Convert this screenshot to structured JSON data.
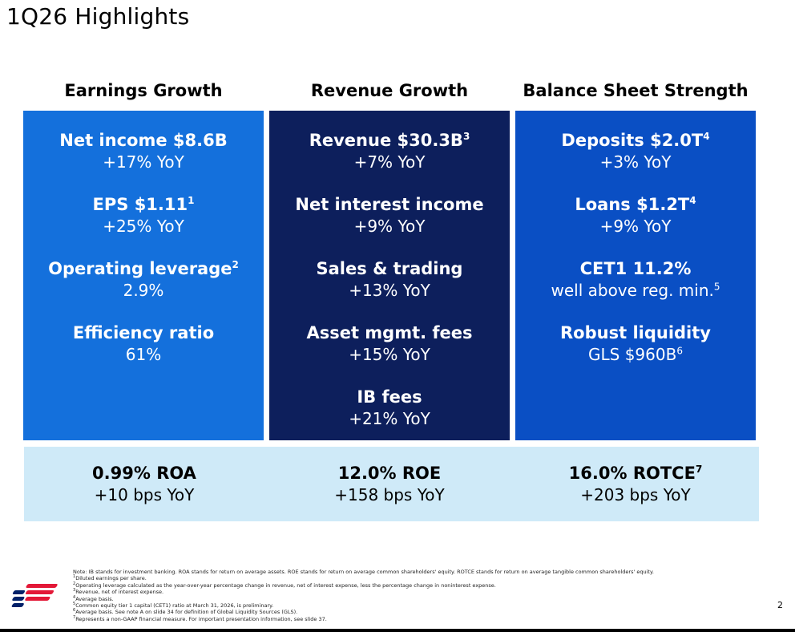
{
  "slide": {
    "title": "1Q26 Highlights",
    "page_number": "2"
  },
  "columns": [
    {
      "heading": "Earnings Growth",
      "color": "#1470dc",
      "metrics": [
        {
          "title": "Net income $8.6B",
          "sup": "",
          "sub": "+17% YoY",
          "sub_sup": ""
        },
        {
          "title": "EPS $1.11",
          "sup": "1",
          "sub": "+25% YoY",
          "sub_sup": ""
        },
        {
          "title": "Operating leverage",
          "sup": "2",
          "sub": "2.9%",
          "sub_sup": ""
        },
        {
          "title": "Efficiency ratio",
          "sup": "",
          "sub": "61%",
          "sub_sup": ""
        }
      ]
    },
    {
      "heading": "Revenue Growth",
      "color": "#0d1f5c",
      "metrics": [
        {
          "title": "Revenue $30.3B",
          "sup": "3",
          "sub": "+7% YoY",
          "sub_sup": ""
        },
        {
          "title": "Net interest income",
          "sup": "",
          "sub": "+9% YoY",
          "sub_sup": ""
        },
        {
          "title": "Sales & trading",
          "sup": "",
          "sub": "+13% YoY",
          "sub_sup": ""
        },
        {
          "title": "Asset mgmt. fees",
          "sup": "",
          "sub": "+15% YoY",
          "sub_sup": ""
        },
        {
          "title": "IB fees",
          "sup": "",
          "sub": "+21% YoY",
          "sub_sup": ""
        }
      ]
    },
    {
      "heading": "Balance Sheet Strength",
      "color": "#0a4fc4",
      "metrics": [
        {
          "title": "Deposits $2.0T",
          "sup": "4",
          "sub": "+3% YoY",
          "sub_sup": ""
        },
        {
          "title": "Loans $1.2T",
          "sup": "4",
          "sub": "+9% YoY",
          "sub_sup": ""
        },
        {
          "title": "CET1 11.2%",
          "sup": "",
          "sub": "well above reg. min.",
          "sub_sup": "5"
        },
        {
          "title": "Robust liquidity",
          "sup": "",
          "sub": "GLS $960B",
          "sub_sup": "6"
        }
      ]
    }
  ],
  "returns": [
    {
      "title": "0.99% ROA",
      "sup": "",
      "sub": "+10 bps YoY"
    },
    {
      "title": "12.0% ROE",
      "sup": "",
      "sub": "+158 bps YoY"
    },
    {
      "title": "16.0% ROTCE",
      "sup": "7",
      "sub": "+203 bps YoY"
    }
  ],
  "notes": {
    "intro": "Note: IB stands for investment banking. ROA stands for return on average assets. ROE stands for return on average common shareholders' equity. ROTCE stands for return on average tangible common shareholders' equity.",
    "items": [
      {
        "n": "1",
        "text": "Diluted earnings per share."
      },
      {
        "n": "2",
        "text": "Operating leverage calculated as the year-over-year percentage change in revenue, net of interest expense, less the percentage change in noninterest expense."
      },
      {
        "n": "3",
        "text": "Revenue, net of interest expense."
      },
      {
        "n": "4",
        "text": "Average basis."
      },
      {
        "n": "5",
        "text": "Common equity tier 1 capital (CET1) ratio at March 31, 2026, is preliminary."
      },
      {
        "n": "6",
        "text": "Average basis. See note A on slide 34 for definition of Global Liquidity Sources (GLS)."
      },
      {
        "n": "7",
        "text": "Represents a non-GAAP financial measure. For important presentation information, see slide 37."
      }
    ]
  },
  "colors": {
    "strip": "#cfeaf8",
    "logo_red": "#e31837",
    "logo_blue": "#012169"
  },
  "icons": {
    "logo": "bank-flag-logo"
  }
}
